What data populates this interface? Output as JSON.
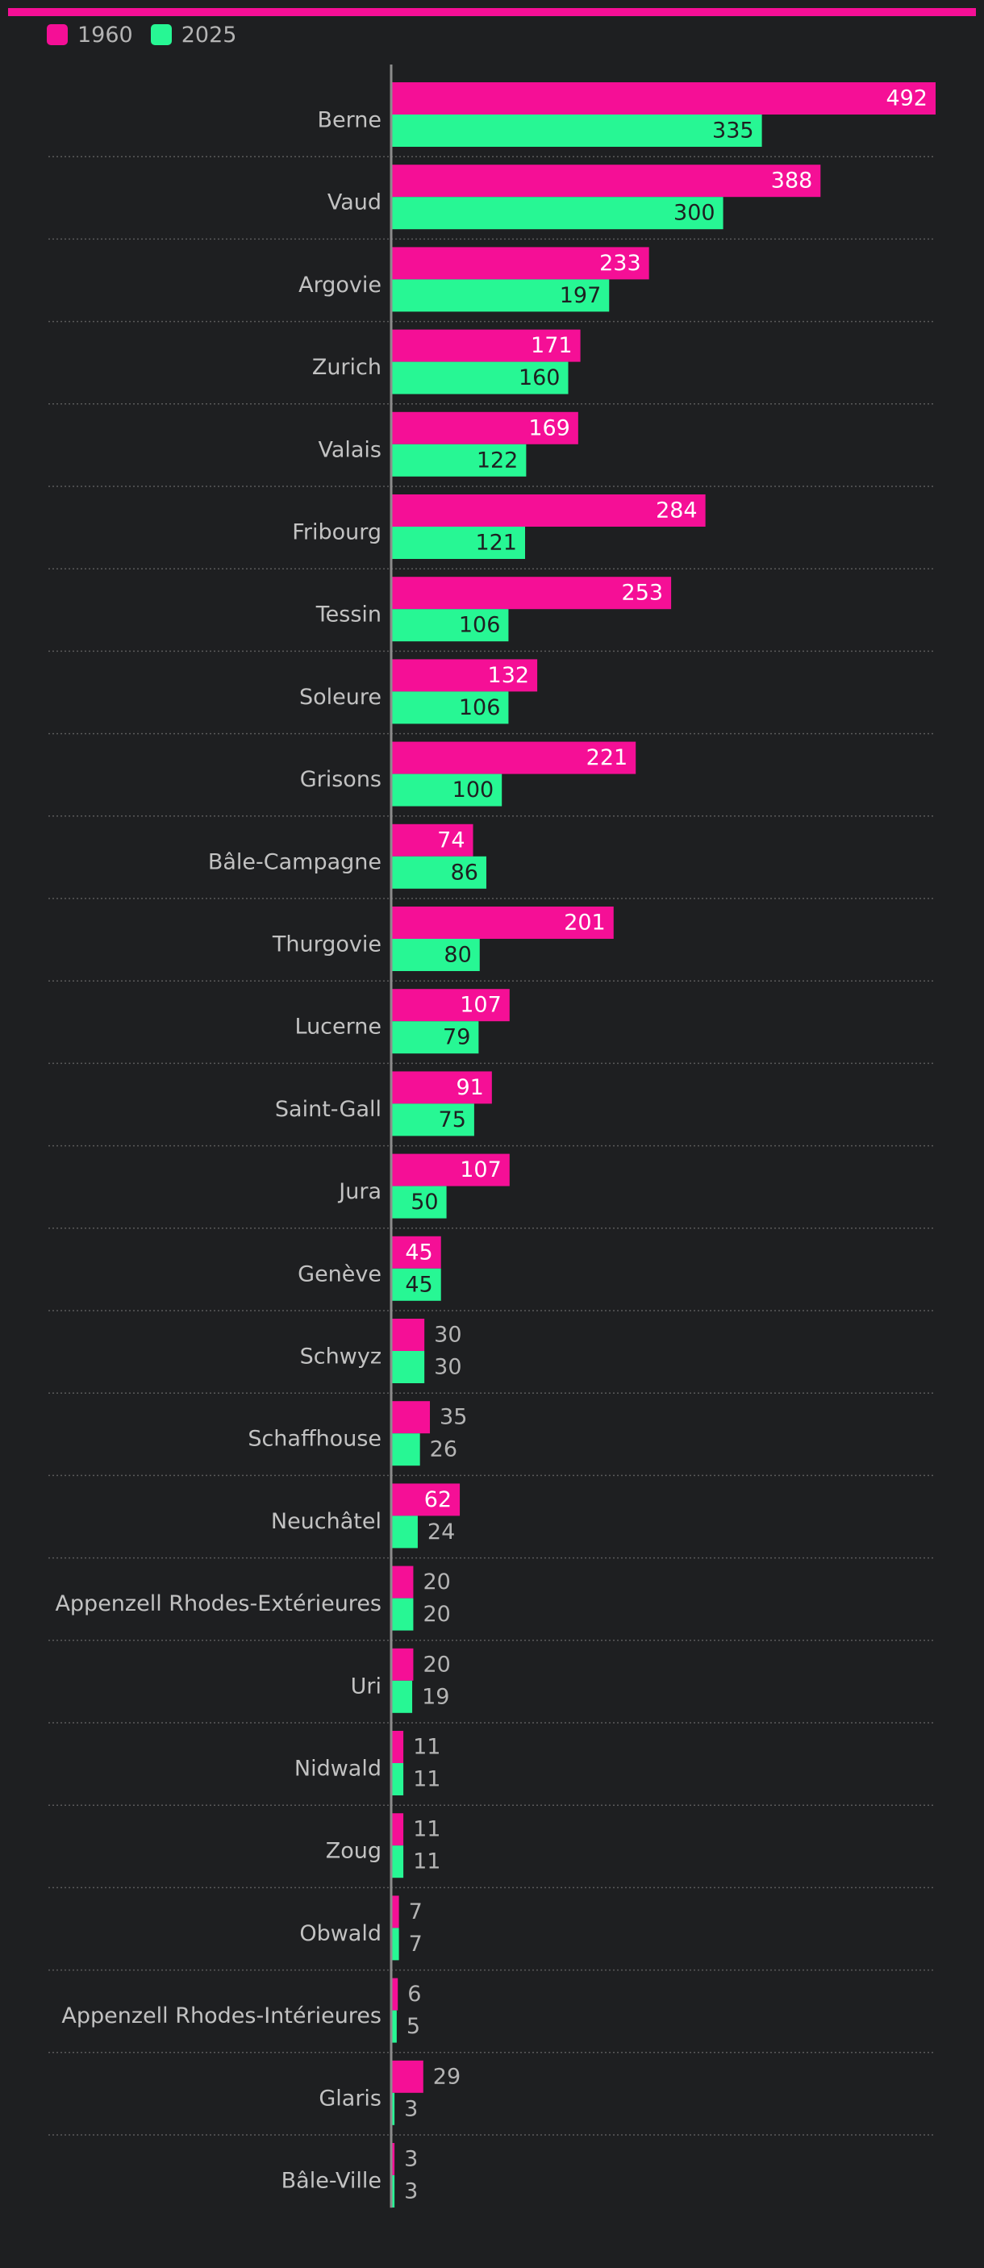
{
  "colors": {
    "accent_bar": "#f50f96",
    "series_1960": "#f50f96",
    "series_2025": "#27f794",
    "background": "#1e1f21",
    "label_inside_1960": "#ffffff",
    "label_inside_2025": "#1e1f21",
    "label_outside": "#b4b4b4",
    "category_label": "#c2c2c2",
    "axis": "#8c8c8c",
    "grid": "#5a5a5a"
  },
  "legend": {
    "items": [
      {
        "label": "1960",
        "color": "#f50f96"
      },
      {
        "label": "2025",
        "color": "#27f794"
      }
    ]
  },
  "chart_data": {
    "type": "bar",
    "orientation": "horizontal",
    "title": "",
    "xlabel": "",
    "ylabel": "",
    "xlim": [
      0,
      492
    ],
    "grid": true,
    "legend_position": "top-left",
    "categories": [
      "Berne",
      "Vaud",
      "Argovie",
      "Zurich",
      "Valais",
      "Fribourg",
      "Tessin",
      "Soleure",
      "Grisons",
      "Bâle-Campagne",
      "Thurgovie",
      "Lucerne",
      "Saint-Gall",
      "Jura",
      "Genève",
      "Schwyz",
      "Schaffhouse",
      "Neuchâtel",
      "Appenzell Rhodes-Extérieures",
      "Uri",
      "Nidwald",
      "Zoug",
      "Obwald",
      "Appenzell Rhodes-Intérieures",
      "Glaris",
      "Bâle-Ville"
    ],
    "series": [
      {
        "name": "1960",
        "values": [
          492,
          388,
          233,
          171,
          169,
          284,
          253,
          132,
          221,
          74,
          201,
          107,
          91,
          107,
          45,
          30,
          35,
          62,
          20,
          20,
          11,
          11,
          7,
          6,
          29,
          3
        ]
      },
      {
        "name": "2025",
        "values": [
          335,
          300,
          197,
          160,
          122,
          121,
          106,
          106,
          100,
          86,
          80,
          79,
          75,
          50,
          45,
          30,
          26,
          24,
          20,
          19,
          11,
          11,
          7,
          5,
          3,
          3
        ]
      }
    ]
  }
}
